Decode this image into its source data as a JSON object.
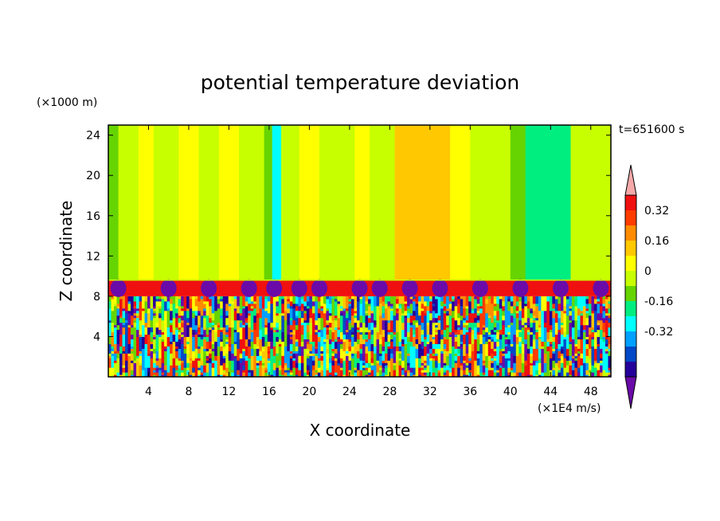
{
  "chart_data": {
    "type": "heatmap",
    "title": "potential temperature deviation",
    "time_label": "t=651600 s",
    "xlabel": "X coordinate",
    "x_unit": "(×1E4 m/s)",
    "ylabel": "Z coordinate",
    "y_unit": "(×1000 m)",
    "xlim": [
      0,
      50
    ],
    "ylim": [
      0,
      25
    ],
    "x_ticks": [
      4,
      8,
      12,
      16,
      20,
      24,
      28,
      32,
      36,
      40,
      44,
      48
    ],
    "y_ticks": [
      4,
      8,
      12,
      16,
      20,
      24
    ],
    "colorbar": {
      "levels": [
        -0.48,
        -0.4,
        -0.32,
        -0.24,
        -0.16,
        -0.08,
        0,
        0.08,
        0.16,
        0.24,
        0.32,
        0.4
      ],
      "colors": [
        "#6a0aa8",
        "#25009a",
        "#0048c8",
        "#00a0ff",
        "#00ffff",
        "#00ee80",
        "#66d400",
        "#c8ff00",
        "#ffff00",
        "#ffc800",
        "#ff8c00",
        "#ff3c00",
        "#f01010",
        "#f5a9a9"
      ],
      "tick_labels": [
        "0.32",
        "0.16",
        "0",
        "-0.16",
        "-0.32"
      ],
      "tick_values": [
        0.32,
        0.16,
        0,
        -0.16,
        -0.32
      ],
      "extend": "both"
    },
    "upper_layer_bands": [
      {
        "x0": 0,
        "x1": 1,
        "level": -0.08
      },
      {
        "x0": 1,
        "x1": 3,
        "level": 0
      },
      {
        "x0": 3,
        "x1": 4.5,
        "level": 0.08
      },
      {
        "x0": 4.5,
        "x1": 7,
        "level": 0
      },
      {
        "x0": 7,
        "x1": 9,
        "level": 0.08
      },
      {
        "x0": 9,
        "x1": 11,
        "level": 0
      },
      {
        "x0": 11,
        "x1": 13,
        "level": 0.08
      },
      {
        "x0": 13,
        "x1": 15.5,
        "level": 0
      },
      {
        "x0": 15.5,
        "x1": 16.3,
        "level": -0.08
      },
      {
        "x0": 16.3,
        "x1": 17.2,
        "level": -0.24
      },
      {
        "x0": 17.2,
        "x1": 19,
        "level": 0
      },
      {
        "x0": 19,
        "x1": 21,
        "level": 0.08
      },
      {
        "x0": 21,
        "x1": 24.5,
        "level": 0
      },
      {
        "x0": 24.5,
        "x1": 26,
        "level": 0.08
      },
      {
        "x0": 26,
        "x1": 28.5,
        "level": 0
      },
      {
        "x0": 28.5,
        "x1": 34,
        "level": 0.16
      },
      {
        "x0": 34,
        "x1": 36,
        "level": 0.08
      },
      {
        "x0": 36,
        "x1": 40,
        "level": 0
      },
      {
        "x0": 40,
        "x1": 41.5,
        "level": -0.08
      },
      {
        "x0": 41.5,
        "x1": 46,
        "level": -0.16
      },
      {
        "x0": 46,
        "x1": 50,
        "level": 0
      }
    ],
    "inversion_layer": {
      "z0": 8.0,
      "z1": 9.6,
      "level": 0.4
    },
    "plume_centers_x": [
      1,
      6,
      10,
      14,
      16.5,
      19,
      21,
      25,
      27,
      30,
      33,
      37,
      41,
      45,
      49
    ],
    "lower_layer": {
      "z0": 0,
      "z1": 8.0,
      "description_levels": [
        -0.48,
        0.4
      ]
    }
  }
}
